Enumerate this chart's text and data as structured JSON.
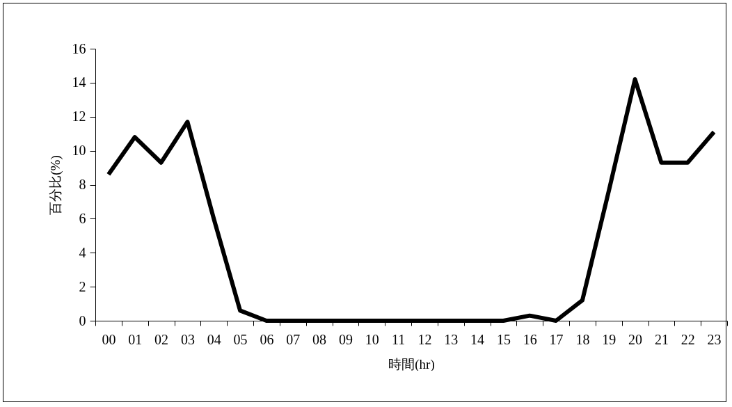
{
  "chart_data": {
    "type": "line",
    "xlabel": "時間(hr)",
    "ylabel": "百分比(%)",
    "categories": [
      "00",
      "01",
      "02",
      "03",
      "04",
      "05",
      "06",
      "07",
      "08",
      "09",
      "10",
      "11",
      "12",
      "13",
      "14",
      "15",
      "16",
      "17",
      "18",
      "19",
      "20",
      "21",
      "22",
      "23"
    ],
    "series": [
      {
        "color": "#000000",
        "values": [
          8.6,
          10.8,
          9.3,
          11.7,
          6.0,
          0.6,
          0,
          0,
          0,
          0,
          0,
          0,
          0,
          0,
          0,
          0,
          0.3,
          0,
          1.2,
          7.6,
          14.2,
          9.3,
          9.3,
          11.1
        ]
      }
    ],
    "ylim": [
      0,
      16
    ],
    "yticks": [
      0,
      2,
      4,
      6,
      8,
      10,
      12,
      14,
      16
    ],
    "grid": false,
    "legend": false,
    "marker": "none",
    "line_style": "solid"
  }
}
